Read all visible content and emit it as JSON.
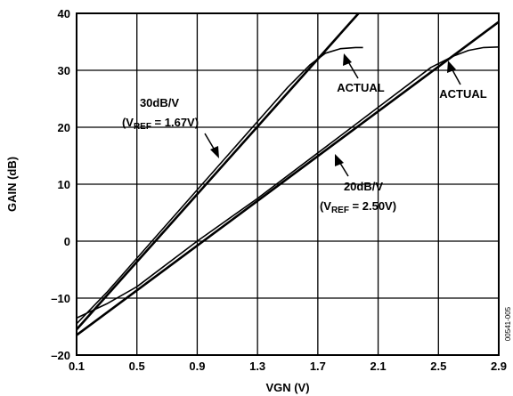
{
  "chart_data": {
    "type": "line",
    "xlabel": "VGN (V)",
    "ylabel": "GAIN (dB)",
    "xlim": [
      0.1,
      2.9
    ],
    "ylim": [
      -20,
      40
    ],
    "x_ticks": [
      "0.1",
      "0.5",
      "0.9",
      "1.3",
      "1.7",
      "2.1",
      "2.5",
      "2.9"
    ],
    "y_ticks": [
      "–20",
      "–10",
      "0",
      "10",
      "20",
      "30",
      "40"
    ],
    "grid": true,
    "series": [
      {
        "x": [
          0.1,
          1.97
        ],
        "y": [
          -15.5,
          40
        ]
      },
      {
        "x": [
          0.1,
          0.3,
          0.6,
          0.9,
          1.2,
          1.5,
          1.65,
          1.75,
          1.85,
          1.95,
          2.0
        ],
        "y": [
          -14.5,
          -9,
          0,
          9,
          18,
          27,
          31,
          33,
          33.8,
          34,
          34
        ]
      },
      {
        "x": [
          0.1,
          2.9
        ],
        "y": [
          -16.5,
          38.5
        ]
      },
      {
        "x": [
          0.1,
          0.3,
          0.5,
          0.9,
          1.3,
          1.7,
          2.1,
          2.45,
          2.6,
          2.7,
          2.8,
          2.9
        ],
        "y": [
          -13.5,
          -11,
          -8,
          0,
          7.5,
          15.5,
          23.5,
          30.5,
          32.5,
          33.5,
          34,
          34.1
        ]
      }
    ],
    "annotations": [
      {
        "lines": [
          "30dB/V",
          "(V",
          "REF",
          " = 1.67V)"
        ]
      },
      {
        "lines": [
          "ACTUAL"
        ]
      },
      {
        "lines": [
          "ACTUAL"
        ]
      },
      {
        "lines": [
          "20dB/V",
          "(V",
          "REF",
          " = 2.50V)"
        ]
      }
    ],
    "figure_id": "00541-005"
  }
}
